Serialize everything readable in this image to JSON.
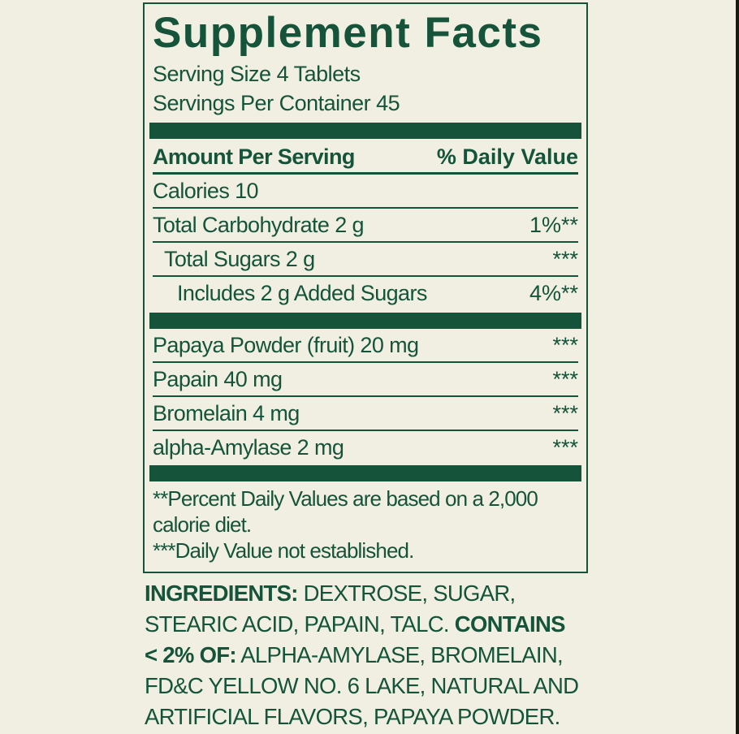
{
  "colors": {
    "background": "#f0efe1",
    "green": "#15543a",
    "edge_strip": "#191914"
  },
  "label": {
    "title": "Supplement Facts",
    "serving_size": "Serving Size 4 Tablets",
    "servings_per_container": "Servings Per Container 45",
    "header": {
      "amount": "Amount Per Serving",
      "daily_value": "% Daily Value"
    },
    "rows_main": [
      {
        "label": "Calories 10",
        "value": ""
      },
      {
        "label": "Total Carbohydrate 2 g",
        "value": "1%**"
      },
      {
        "label": "Total Sugars 2 g",
        "value": "***"
      },
      {
        "label": "Includes 2 g Added Sugars",
        "value": "4%**"
      }
    ],
    "rows_blend": [
      {
        "label": "Papaya Powder (fruit) 20 mg",
        "value": "***"
      },
      {
        "label": "Papain 40 mg",
        "value": "***"
      },
      {
        "label": "Bromelain 4 mg",
        "value": "***"
      },
      {
        "label": "alpha-Amylase 2 mg",
        "value": "***"
      }
    ],
    "footnote_lines": [
      "**Percent Daily Values are based on a 2,000",
      "calorie diet.",
      "***Daily Value not established."
    ]
  },
  "ingredients": {
    "lines": [
      {
        "bold": "INGREDIENTS:",
        "text": " DEXTROSE, SUGAR,"
      },
      {
        "text": "STEARIC ACID, PAPAIN, TALC. ",
        "bold": "CONTAINS"
      },
      {
        "bold": "< 2% OF:",
        "text": " ALPHA-AMYLASE, BROMELAIN,"
      },
      {
        "text": "FD&C YELLOW NO. 6 LAKE, NATURAL AND"
      },
      {
        "text": "ARTIFICIAL FLAVORS, PAPAYA POWDER."
      }
    ]
  }
}
